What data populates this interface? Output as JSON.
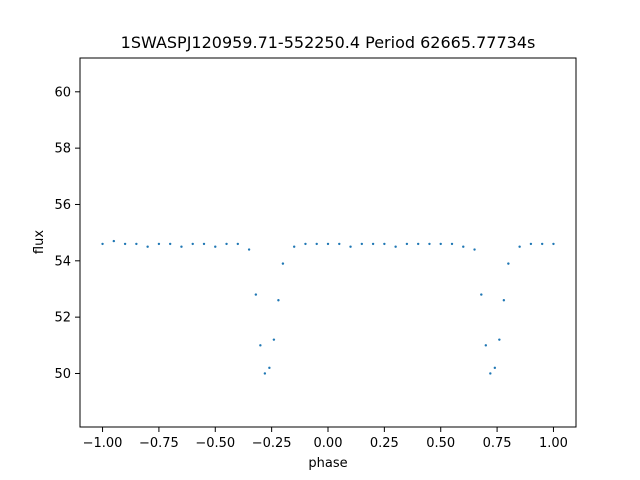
{
  "chart_data": {
    "type": "scatter",
    "title": "1SWASPJ120959.71-552250.4 Period 62665.77734s",
    "xlabel": "phase",
    "ylabel": "flux",
    "xlim": [
      -1.1,
      1.1
    ],
    "ylim": [
      48.1,
      61.2
    ],
    "xticks": [
      -1.0,
      -0.75,
      -0.5,
      -0.25,
      0.0,
      0.25,
      0.5,
      0.75,
      1.0
    ],
    "xtick_labels": [
      "−1.00",
      "−0.75",
      "−0.50",
      "−0.25",
      "0.00",
      "0.25",
      "0.50",
      "0.75",
      "1.00"
    ],
    "yticks": [
      50,
      52,
      54,
      56,
      58,
      60
    ],
    "ytick_labels": [
      "50",
      "52",
      "54",
      "56",
      "58",
      "60"
    ],
    "grid": false,
    "marker_color": "#1f77b4",
    "series": [
      {
        "x": [
          -1.0,
          -0.95,
          -0.9,
          -0.85,
          -0.8,
          -0.75,
          -0.7,
          -0.65,
          -0.6,
          -0.55,
          -0.5,
          -0.45,
          -0.4,
          -0.35,
          -0.32,
          -0.3,
          -0.28,
          -0.26,
          -0.24,
          -0.22,
          -0.2,
          -0.15,
          -0.1,
          -0.05,
          0.0,
          0.05,
          0.1,
          0.15,
          0.2,
          0.25,
          0.3,
          0.35,
          0.4,
          0.45,
          0.5,
          0.55,
          0.6,
          0.65,
          0.68,
          0.7,
          0.72,
          0.74,
          0.76,
          0.78,
          0.8,
          0.85,
          0.9,
          0.95,
          1.0
        ],
        "y": [
          54.6,
          54.7,
          54.6,
          54.6,
          54.5,
          54.6,
          54.6,
          54.5,
          54.6,
          54.6,
          54.5,
          54.6,
          54.6,
          54.4,
          52.8,
          51.0,
          50.0,
          50.2,
          51.2,
          52.6,
          53.9,
          54.5,
          54.6,
          54.6,
          54.6,
          54.6,
          54.5,
          54.6,
          54.6,
          54.6,
          54.5,
          54.6,
          54.6,
          54.6,
          54.6,
          54.6,
          54.5,
          54.4,
          52.8,
          51.0,
          50.0,
          50.2,
          51.2,
          52.6,
          53.9,
          54.5,
          54.6,
          54.6,
          54.6
        ]
      }
    ]
  }
}
